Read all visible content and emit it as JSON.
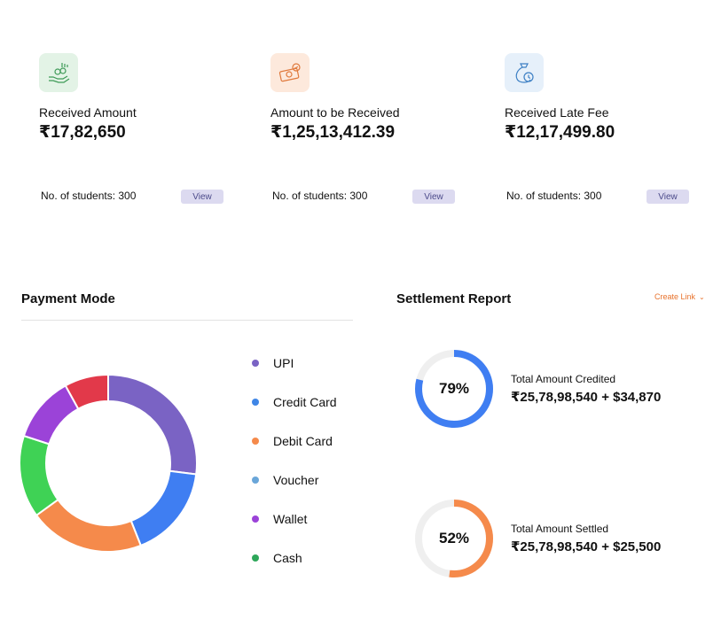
{
  "cards": [
    {
      "label": "Received Amount",
      "amount": "₹17,82,650",
      "students": "No. of students: 300",
      "view": "View",
      "icon": "money-hand-icon",
      "icon_bg": "#e3f3e6",
      "icon_color": "#3e9a57"
    },
    {
      "label": "Amount to be Received",
      "amount": "₹1,25,13,412.39",
      "students": "No. of students: 300",
      "view": "View",
      "icon": "cash-bill-icon",
      "icon_bg": "#fde9dc",
      "icon_color": "#e0793c"
    },
    {
      "label": "Received Late Fee",
      "amount": "₹12,17,499.80",
      "students": "No. of students: 300",
      "view": "View",
      "icon": "money-bag-clock-icon",
      "icon_bg": "#e6f0fa",
      "icon_color": "#3c7fc4"
    }
  ],
  "payment_mode": {
    "title": "Payment Mode",
    "legend": [
      {
        "label": "UPI",
        "color": "#7a63c4"
      },
      {
        "label": "Credit Card",
        "color": "#3f86e6"
      },
      {
        "label": "Debit Card",
        "color": "#f58a4b"
      },
      {
        "label": "Voucher",
        "color": "#6aa6d9"
      },
      {
        "label": "Wallet",
        "color": "#9b43d8"
      },
      {
        "label": "Cash",
        "color": "#2ea75a"
      }
    ],
    "donut_segments": [
      {
        "color": "#7a63c4",
        "percent": 27
      },
      {
        "color": "#3f7ef2",
        "percent": 17
      },
      {
        "color": "#f58a4b",
        "percent": 21
      },
      {
        "color": "#3fd255",
        "percent": 15
      },
      {
        "color": "#9b43d8",
        "percent": 12
      },
      {
        "color": "#e2394a",
        "percent": 8
      }
    ]
  },
  "settlement": {
    "title": "Settlement Report",
    "create_link": "Create Link",
    "items": [
      {
        "percent": 79,
        "percent_label": "79%",
        "label": "Total Amount Credited",
        "amount": "₹25,78,98,540 + $34,870",
        "color": "#3f7ef2"
      },
      {
        "percent": 52,
        "percent_label": "52%",
        "label": "Total Amount Settled",
        "amount": "₹25,78,98,540 + $25,500",
        "color": "#f58a4b"
      }
    ]
  }
}
